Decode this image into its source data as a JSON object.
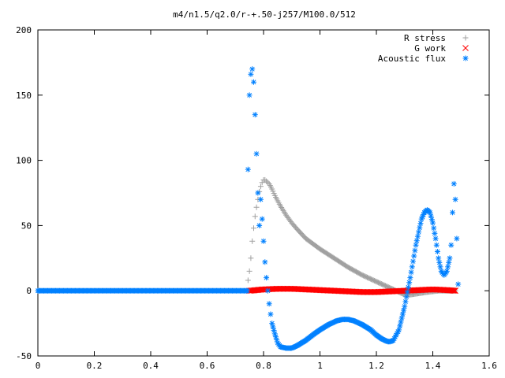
{
  "chart_data": {
    "type": "scatter",
    "title": "m4/n1.5/q2.0/r-+.50-j257/M100.0/512",
    "xlabel": "",
    "ylabel": "",
    "xlim": [
      0,
      1.6
    ],
    "ylim": [
      -50,
      200
    ],
    "xticks": [
      "0",
      "0.2",
      "0.4",
      "0.6",
      "0.8",
      "1",
      "1.2",
      "1.4",
      "1.6"
    ],
    "yticks": [
      "-50",
      "0",
      "50",
      "100",
      "150",
      "200"
    ],
    "grid": false,
    "legend_position": "top-right",
    "series": [
      {
        "name": "R stress",
        "marker": "plus",
        "color": "#a0a0a0",
        "x": [
          0.745,
          0.75,
          0.755,
          0.76,
          0.765,
          0.77,
          0.775,
          0.78,
          0.785,
          0.79,
          0.795,
          0.8,
          0.805,
          0.81,
          0.815,
          0.82,
          0.83,
          0.84,
          0.85,
          0.86,
          0.88,
          0.9,
          0.92,
          0.95,
          1.0,
          1.05,
          1.1,
          1.15,
          1.2,
          1.25,
          1.28,
          1.3,
          1.32,
          1.35,
          1.38,
          1.4,
          1.42,
          1.45,
          1.48
        ],
        "y": [
          8,
          15,
          25,
          38,
          48,
          57,
          64,
          70,
          76,
          80,
          83,
          85,
          85,
          84,
          83,
          82,
          78,
          73,
          69,
          65,
          58,
          52,
          47,
          40,
          32,
          25,
          18,
          12,
          7,
          2,
          -1,
          -3,
          -3,
          -2,
          -1,
          -0.5,
          0,
          0,
          0
        ]
      },
      {
        "name": "G work",
        "marker": "cross",
        "color": "#ff0000",
        "x": [
          0.75,
          0.8,
          0.85,
          0.9,
          0.95,
          1.0,
          1.05,
          1.1,
          1.15,
          1.2,
          1.25,
          1.3,
          1.35,
          1.4,
          1.45,
          1.48
        ],
        "y": [
          0,
          1,
          1.5,
          1.5,
          1,
          0.5,
          0,
          -0.5,
          -1,
          -1,
          -0.5,
          0,
          0.5,
          1,
          0.5,
          0
        ]
      },
      {
        "name": "Acoustic flux",
        "marker": "star",
        "color": "#0080ff",
        "x": [
          0.745,
          0.75,
          0.755,
          0.76,
          0.765,
          0.77,
          0.775,
          0.78,
          0.785,
          0.79,
          0.795,
          0.8,
          0.805,
          0.81,
          0.815,
          0.82,
          0.825,
          0.83,
          0.84,
          0.85,
          0.86,
          0.88,
          0.9,
          0.92,
          0.95,
          0.98,
          1.0,
          1.03,
          1.06,
          1.08,
          1.1,
          1.12,
          1.15,
          1.18,
          1.2,
          1.22,
          1.24,
          1.25,
          1.26,
          1.28,
          1.3,
          1.32,
          1.34,
          1.36,
          1.37,
          1.38,
          1.39,
          1.4,
          1.41,
          1.42,
          1.43,
          1.44,
          1.45,
          1.46,
          1.465,
          1.47,
          1.475,
          1.48,
          1.485,
          1.49
        ],
        "y": [
          93,
          150,
          166,
          170,
          160,
          135,
          105,
          75,
          50,
          70,
          55,
          38,
          22,
          10,
          0,
          -10,
          -18,
          -25,
          -33,
          -40,
          -43,
          -44,
          -44,
          -42,
          -38,
          -33,
          -30,
          -26,
          -23,
          -22,
          -22,
          -23,
          -26,
          -30,
          -34,
          -37,
          -39,
          -39,
          -38,
          -30,
          -12,
          10,
          35,
          55,
          60,
          62,
          60,
          52,
          40,
          25,
          15,
          12,
          15,
          25,
          35,
          60,
          82,
          70,
          40,
          5
        ]
      }
    ]
  }
}
